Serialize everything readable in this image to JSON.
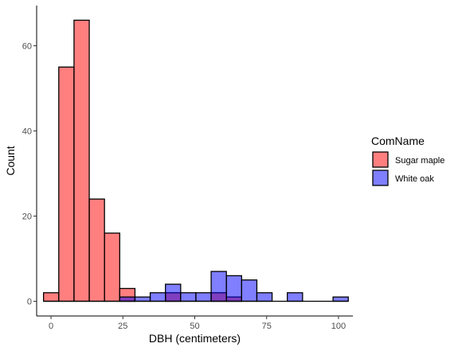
{
  "chart_data": {
    "type": "bar",
    "subtype": "overlapping-histogram",
    "xlabel": "DBH (centimeters)",
    "ylabel": "Count",
    "xlim": [
      -5,
      105
    ],
    "ylim": [
      0,
      66
    ],
    "x_ticks": [
      0,
      25,
      50,
      75,
      100
    ],
    "y_ticks": [
      0,
      20,
      40,
      60
    ],
    "bin_width": 5.3,
    "grid": false,
    "legend": {
      "title": "ComName",
      "position": "right"
    },
    "bin_left_edges": [
      -2.6,
      2.7,
      8.0,
      13.3,
      18.6,
      23.9,
      29.2,
      34.5,
      39.8,
      45.1,
      50.4,
      55.7,
      61.0,
      66.3,
      71.6,
      76.9,
      82.2,
      87.5,
      92.8,
      98.1
    ],
    "series": [
      {
        "name": "Sugar maple",
        "color": "#ff0000",
        "opacity": 0.5,
        "values": [
          2,
          55,
          66,
          24,
          16,
          3,
          0,
          0,
          2,
          0,
          0,
          2,
          1,
          0,
          0,
          0,
          0,
          0,
          0,
          0
        ]
      },
      {
        "name": "White oak",
        "color": "#0000ff",
        "opacity": 0.5,
        "values": [
          0,
          0,
          0,
          0,
          0,
          1,
          1,
          2,
          4,
          2,
          2,
          7,
          6,
          5,
          2,
          0,
          2,
          0,
          0,
          1
        ]
      }
    ]
  }
}
